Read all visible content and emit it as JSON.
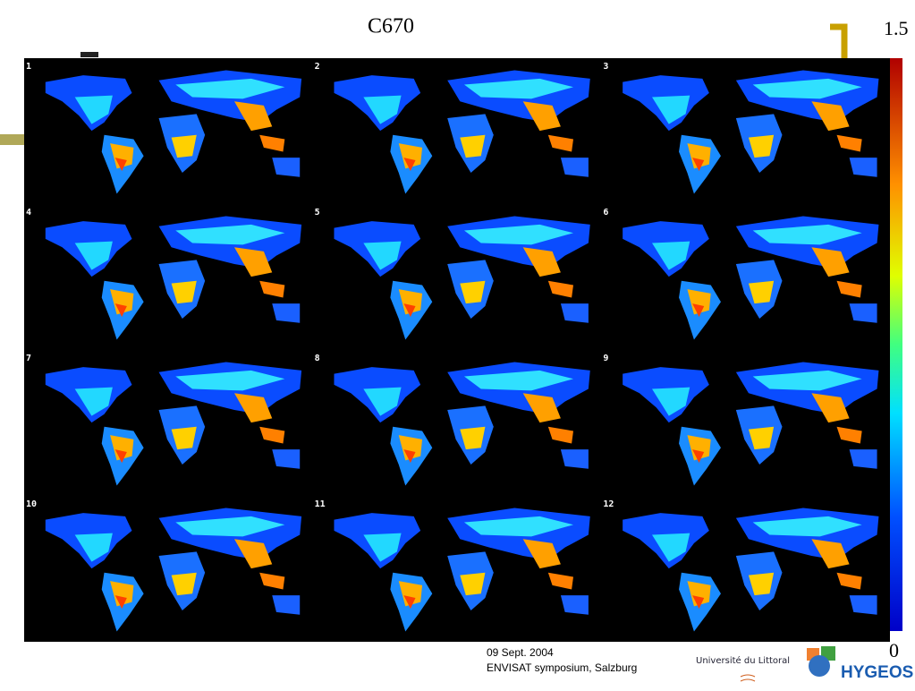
{
  "title": "C670",
  "colorbar": {
    "max": 1.5,
    "min": 0
  },
  "panels": [
    {
      "label": "1"
    },
    {
      "label": "2"
    },
    {
      "label": "3"
    },
    {
      "label": "4"
    },
    {
      "label": "5"
    },
    {
      "label": "6"
    },
    {
      "label": "7"
    },
    {
      "label": "8"
    },
    {
      "label": "9"
    },
    {
      "label": "10"
    },
    {
      "label": "11"
    },
    {
      "label": "12"
    }
  ],
  "footer": {
    "date": "09 Sept. 2004",
    "event": "ENVISAT symposium, Salzburg"
  },
  "logos": {
    "university": "Université du Littoral",
    "company": "HYGEOS"
  }
}
